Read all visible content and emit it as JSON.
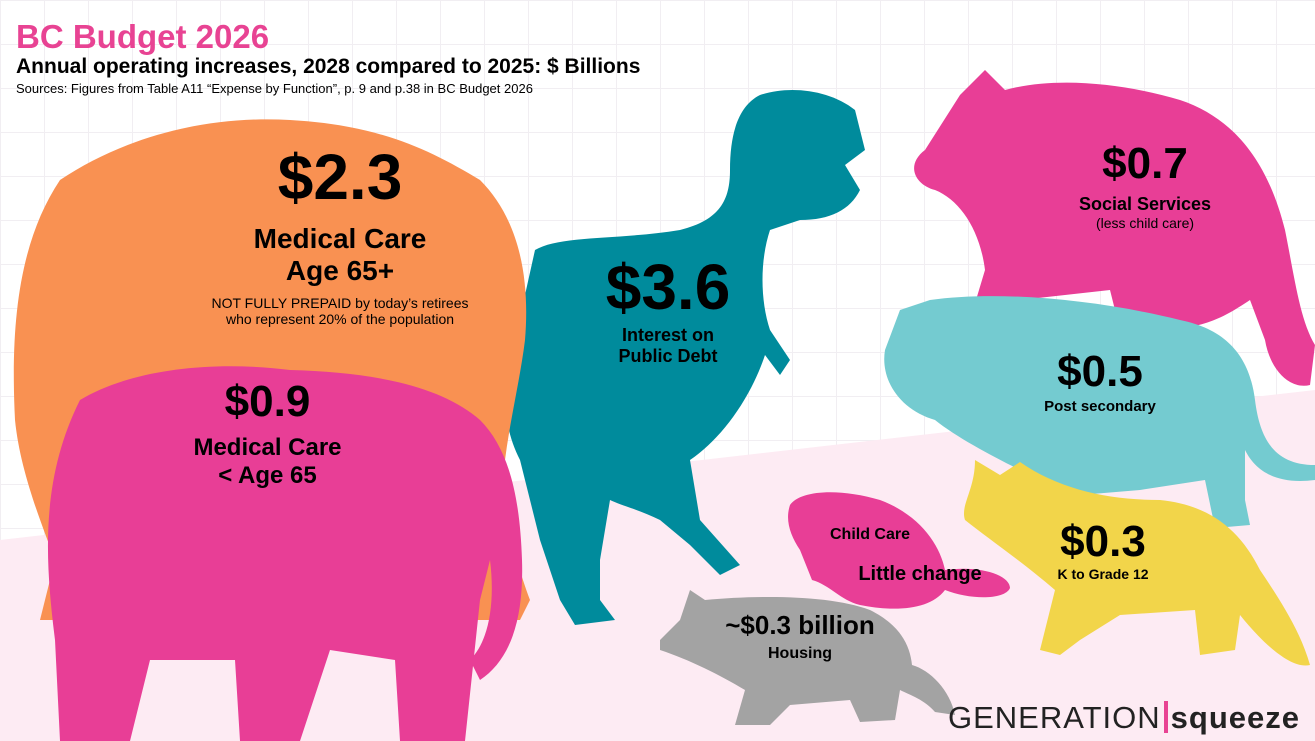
{
  "header": {
    "title": "BC Budget 2026",
    "subtitle": "Annual operating increases, 2028 compared to 2025: $ Billions",
    "source": "Sources: Figures from Table A11 “Expense by Function”, p. 9 and p.38 in BC Budget 2026"
  },
  "colors": {
    "title": "#e84393",
    "orange": "#f99152",
    "pink": "#e83e96",
    "teal": "#008b9c",
    "light_teal": "#74cbd0",
    "yellow": "#f2d54a",
    "gray": "#a3a3a3",
    "background_band": "#fdebf3"
  },
  "items": [
    {
      "animal": "elephant-icon",
      "value": "$2.3",
      "label1": "Medical Care",
      "label2": "Age 65+",
      "note1": "NOT FULLY PREPAID by today’s retirees",
      "note2": "who represent 20% of the population"
    },
    {
      "animal": "elephant-calf-icon",
      "value": "$0.9",
      "label1": "Medical Care",
      "label2": "< Age 65"
    },
    {
      "animal": "t-rex-icon",
      "value": "$3.6",
      "label1": "Interest on",
      "label2": "Public Debt"
    },
    {
      "animal": "bear-icon",
      "value": "$0.7",
      "label1": "Social Services",
      "label2": "(less child care)"
    },
    {
      "animal": "cougar-icon",
      "value": "$0.5",
      "label1": "Post secondary"
    },
    {
      "animal": "fox-icon",
      "value": "$0.3",
      "label1": "K to Grade 12"
    },
    {
      "animal": "beaver-icon",
      "label1": "Child Care",
      "label2": "Little change"
    },
    {
      "animal": "raccoon-icon",
      "value": "~$0.3 billion",
      "label1": "Housing"
    }
  ],
  "logo": {
    "part1": "GENERATION",
    "part2": "squeeze"
  }
}
